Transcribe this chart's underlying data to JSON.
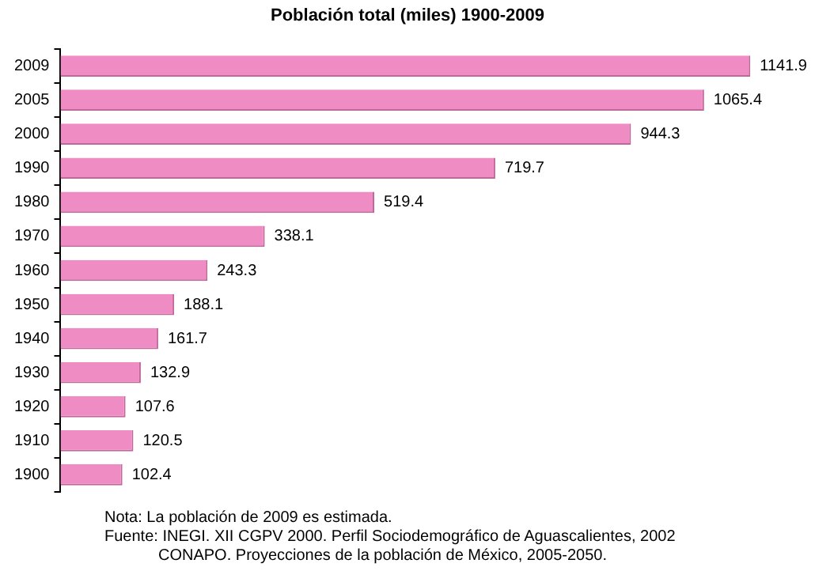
{
  "chart_data": {
    "type": "bar",
    "orientation": "horizontal",
    "title": "Población total (miles) 1900-2009",
    "categories": [
      "2009",
      "2005",
      "2000",
      "1990",
      "1980",
      "1970",
      "1960",
      "1950",
      "1940",
      "1930",
      "1920",
      "1910",
      "1900"
    ],
    "values": [
      1141.9,
      1065.4,
      944.3,
      719.7,
      519.4,
      338.1,
      243.3,
      188.1,
      161.7,
      132.9,
      107.6,
      120.5,
      102.4
    ],
    "color": "#f08cc4",
    "data_labels": true,
    "legend": false,
    "annotations": [
      "Nota: La población de 2009 es estimada.",
      "Fuente: INEGI. XII CGPV 2000. Perfil Sociodemográfico de Aguascalientes, 2002",
      "CONAPO. Proyecciones de la población de México, 2005-2050."
    ]
  }
}
